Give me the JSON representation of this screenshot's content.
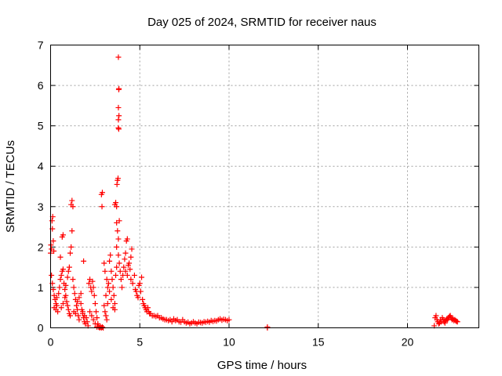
{
  "chart_data": {
    "type": "scatter",
    "title": "Day 025 of 2024, SRMTID for receiver naus",
    "xlabel": "GPS time / hours",
    "ylabel": "SRMTID / TECUs",
    "xlim": [
      0,
      24
    ],
    "ylim": [
      0,
      7
    ],
    "xticks": [
      0,
      5,
      10,
      15,
      20
    ],
    "yticks": [
      0,
      1,
      2,
      3,
      4,
      5,
      6,
      7
    ],
    "grid": true,
    "marker": "plus",
    "color": "#ff0000",
    "series": [
      {
        "name": "SRMTID",
        "points": [
          [
            0.0,
            1.85
          ],
          [
            0.02,
            2.05
          ],
          [
            0.05,
            1.95
          ],
          [
            0.08,
            2.65
          ],
          [
            0.12,
            2.75
          ],
          [
            0.1,
            2.45
          ],
          [
            0.15,
            2.15
          ],
          [
            0.18,
            1.9
          ],
          [
            0.05,
            1.3
          ],
          [
            0.1,
            1.1
          ],
          [
            0.15,
            0.95
          ],
          [
            0.2,
            0.8
          ],
          [
            0.25,
            0.7
          ],
          [
            0.3,
            0.6
          ],
          [
            0.2,
            0.5
          ],
          [
            0.3,
            0.45
          ],
          [
            0.35,
            0.55
          ],
          [
            0.4,
            0.4
          ],
          [
            0.35,
            0.75
          ],
          [
            0.45,
            0.85
          ],
          [
            0.5,
            1.0
          ],
          [
            0.55,
            1.2
          ],
          [
            0.6,
            1.3
          ],
          [
            0.65,
            1.4
          ],
          [
            0.7,
            1.45
          ],
          [
            0.55,
            1.75
          ],
          [
            0.65,
            2.25
          ],
          [
            0.7,
            2.3
          ],
          [
            0.75,
            1.1
          ],
          [
            0.8,
            0.95
          ],
          [
            0.85,
            0.8
          ],
          [
            0.9,
            0.65
          ],
          [
            0.95,
            0.55
          ],
          [
            1.0,
            0.45
          ],
          [
            1.05,
            0.35
          ],
          [
            1.1,
            0.3
          ],
          [
            0.6,
            0.5
          ],
          [
            0.7,
            0.6
          ],
          [
            0.8,
            0.75
          ],
          [
            0.85,
            1.05
          ],
          [
            0.95,
            1.25
          ],
          [
            1.0,
            1.4
          ],
          [
            1.05,
            1.5
          ],
          [
            1.1,
            1.85
          ],
          [
            1.15,
            2.0
          ],
          [
            1.2,
            2.4
          ],
          [
            1.15,
            3.05
          ],
          [
            1.2,
            3.15
          ],
          [
            1.25,
            3.0
          ],
          [
            1.25,
            1.2
          ],
          [
            1.3,
            1.0
          ],
          [
            1.35,
            0.85
          ],
          [
            1.4,
            0.7
          ],
          [
            1.45,
            0.55
          ],
          [
            1.5,
            0.45
          ],
          [
            1.55,
            0.3
          ],
          [
            1.6,
            0.2
          ],
          [
            1.3,
            0.4
          ],
          [
            1.4,
            0.35
          ],
          [
            1.5,
            0.65
          ],
          [
            1.6,
            0.75
          ],
          [
            1.7,
            0.6
          ],
          [
            1.75,
            0.45
          ],
          [
            1.8,
            0.35
          ],
          [
            1.85,
            0.25
          ],
          [
            1.9,
            0.15
          ],
          [
            1.95,
            0.1
          ],
          [
            1.85,
            1.65
          ],
          [
            1.7,
            0.85
          ],
          [
            1.8,
            0.4
          ],
          [
            1.9,
            0.3
          ],
          [
            2.0,
            0.25
          ],
          [
            2.05,
            0.15
          ],
          [
            2.1,
            0.05
          ],
          [
            2.15,
            1.1
          ],
          [
            2.2,
            1.2
          ],
          [
            2.25,
            1.0
          ],
          [
            2.3,
            0.9
          ],
          [
            2.35,
            1.15
          ],
          [
            2.4,
            1.0
          ],
          [
            2.45,
            0.8
          ],
          [
            2.5,
            0.6
          ],
          [
            2.55,
            0.4
          ],
          [
            2.6,
            0.25
          ],
          [
            2.65,
            0.1
          ],
          [
            2.2,
            0.4
          ],
          [
            2.3,
            0.3
          ],
          [
            2.4,
            0.2
          ],
          [
            2.5,
            0.1
          ],
          [
            2.6,
            0.02
          ],
          [
            2.7,
            0.02
          ],
          [
            2.75,
            0.0
          ],
          [
            2.8,
            0.02
          ],
          [
            2.85,
            0.0
          ],
          [
            2.9,
            0.02
          ],
          [
            2.95,
            0.0
          ],
          [
            2.85,
            3.3
          ],
          [
            2.9,
            3.35
          ],
          [
            2.88,
            3.0
          ],
          [
            3.0,
            1.6
          ],
          [
            3.05,
            1.4
          ],
          [
            3.0,
            0.55
          ],
          [
            3.05,
            0.4
          ],
          [
            3.1,
            0.3
          ],
          [
            3.15,
            0.2
          ],
          [
            3.2,
            0.6
          ],
          [
            3.1,
            0.8
          ],
          [
            3.2,
            1.0
          ],
          [
            3.15,
            1.2
          ],
          [
            3.25,
            1.1
          ],
          [
            3.3,
            0.9
          ],
          [
            3.3,
            1.65
          ],
          [
            3.35,
            1.8
          ],
          [
            3.4,
            1.4
          ],
          [
            3.45,
            1.2
          ],
          [
            3.5,
            1.0
          ],
          [
            3.55,
            0.8
          ],
          [
            3.6,
            0.6
          ],
          [
            3.4,
            0.7
          ],
          [
            3.5,
            0.5
          ],
          [
            3.6,
            0.45
          ],
          [
            3.65,
            1.3
          ],
          [
            3.7,
            1.5
          ],
          [
            3.6,
            3.05
          ],
          [
            3.65,
            3.1
          ],
          [
            3.7,
            3.0
          ],
          [
            3.72,
            3.55
          ],
          [
            3.75,
            3.65
          ],
          [
            3.78,
            3.7
          ],
          [
            3.7,
            2.6
          ],
          [
            3.75,
            2.4
          ],
          [
            3.8,
            2.2
          ],
          [
            3.7,
            2.0
          ],
          [
            3.8,
            1.8
          ],
          [
            3.85,
            2.65
          ],
          [
            3.8,
            4.95
          ],
          [
            3.82,
            4.92
          ],
          [
            3.8,
            5.15
          ],
          [
            3.83,
            5.25
          ],
          [
            3.8,
            5.45
          ],
          [
            3.82,
            5.9
          ],
          [
            3.83,
            5.92
          ],
          [
            3.8,
            6.7
          ],
          [
            3.85,
            1.6
          ],
          [
            3.9,
            1.4
          ],
          [
            3.95,
            1.2
          ],
          [
            4.0,
            1.0
          ],
          [
            4.05,
            1.3
          ],
          [
            4.1,
            1.5
          ],
          [
            4.15,
            1.7
          ],
          [
            4.2,
            1.85
          ],
          [
            4.25,
            2.15
          ],
          [
            4.3,
            2.2
          ],
          [
            4.2,
            1.4
          ],
          [
            4.3,
            1.3
          ],
          [
            4.35,
            1.55
          ],
          [
            4.4,
            1.6
          ],
          [
            4.45,
            1.45
          ],
          [
            4.5,
            1.75
          ],
          [
            4.55,
            1.95
          ],
          [
            4.5,
            1.2
          ],
          [
            4.6,
            1.1
          ],
          [
            4.7,
            1.3
          ],
          [
            4.75,
            0.95
          ],
          [
            4.8,
            0.9
          ],
          [
            4.85,
            0.8
          ],
          [
            4.9,
            0.75
          ],
          [
            4.95,
            1.05
          ],
          [
            5.0,
            1.1
          ],
          [
            5.05,
            0.9
          ],
          [
            5.1,
            1.25
          ],
          [
            5.15,
            0.7
          ],
          [
            5.2,
            0.6
          ],
          [
            5.25,
            0.55
          ],
          [
            5.3,
            0.5
          ],
          [
            5.35,
            0.45
          ],
          [
            5.4,
            0.4
          ],
          [
            5.45,
            0.5
          ],
          [
            5.5,
            0.4
          ],
          [
            5.55,
            0.35
          ],
          [
            5.6,
            0.35
          ],
          [
            5.7,
            0.3
          ],
          [
            5.8,
            0.3
          ],
          [
            5.9,
            0.28
          ],
          [
            6.0,
            0.3
          ],
          [
            6.1,
            0.25
          ],
          [
            6.2,
            0.25
          ],
          [
            6.3,
            0.22
          ],
          [
            6.4,
            0.2
          ],
          [
            6.5,
            0.2
          ],
          [
            6.6,
            0.18
          ],
          [
            6.7,
            0.2
          ],
          [
            6.8,
            0.15
          ],
          [
            6.9,
            0.22
          ],
          [
            7.0,
            0.18
          ],
          [
            7.1,
            0.2
          ],
          [
            7.2,
            0.15
          ],
          [
            7.3,
            0.14
          ],
          [
            7.4,
            0.2
          ],
          [
            7.5,
            0.15
          ],
          [
            7.6,
            0.12
          ],
          [
            7.7,
            0.14
          ],
          [
            7.8,
            0.1
          ],
          [
            7.9,
            0.12
          ],
          [
            8.0,
            0.15
          ],
          [
            8.1,
            0.12
          ],
          [
            8.2,
            0.1
          ],
          [
            8.3,
            0.14
          ],
          [
            8.4,
            0.13
          ],
          [
            8.5,
            0.12
          ],
          [
            8.6,
            0.15
          ],
          [
            8.7,
            0.14
          ],
          [
            8.8,
            0.16
          ],
          [
            8.9,
            0.14
          ],
          [
            9.0,
            0.18
          ],
          [
            9.1,
            0.16
          ],
          [
            9.2,
            0.18
          ],
          [
            9.3,
            0.17
          ],
          [
            9.4,
            0.2
          ],
          [
            9.5,
            0.22
          ],
          [
            9.6,
            0.19
          ],
          [
            9.7,
            0.21
          ],
          [
            9.8,
            0.2
          ],
          [
            9.9,
            0.18
          ],
          [
            10.0,
            0.2
          ],
          [
            12.15,
            0.0
          ],
          [
            12.15,
            0.02
          ],
          [
            21.5,
            0.05
          ],
          [
            21.55,
            0.25
          ],
          [
            21.6,
            0.3
          ],
          [
            21.65,
            0.2
          ],
          [
            21.7,
            0.15
          ],
          [
            21.75,
            0.1
          ],
          [
            21.8,
            0.12
          ],
          [
            21.85,
            0.2
          ],
          [
            21.9,
            0.15
          ],
          [
            21.95,
            0.25
          ],
          [
            22.0,
            0.2
          ],
          [
            22.05,
            0.15
          ],
          [
            22.1,
            0.12
          ],
          [
            22.15,
            0.18
          ],
          [
            22.2,
            0.22
          ],
          [
            22.25,
            0.2
          ],
          [
            22.3,
            0.25
          ],
          [
            22.35,
            0.28
          ],
          [
            22.4,
            0.3
          ],
          [
            22.45,
            0.25
          ],
          [
            22.5,
            0.2
          ],
          [
            22.55,
            0.22
          ],
          [
            22.6,
            0.18
          ],
          [
            22.65,
            0.2
          ],
          [
            22.7,
            0.18
          ],
          [
            22.75,
            0.16
          ],
          [
            22.8,
            0.15
          ]
        ]
      }
    ]
  }
}
